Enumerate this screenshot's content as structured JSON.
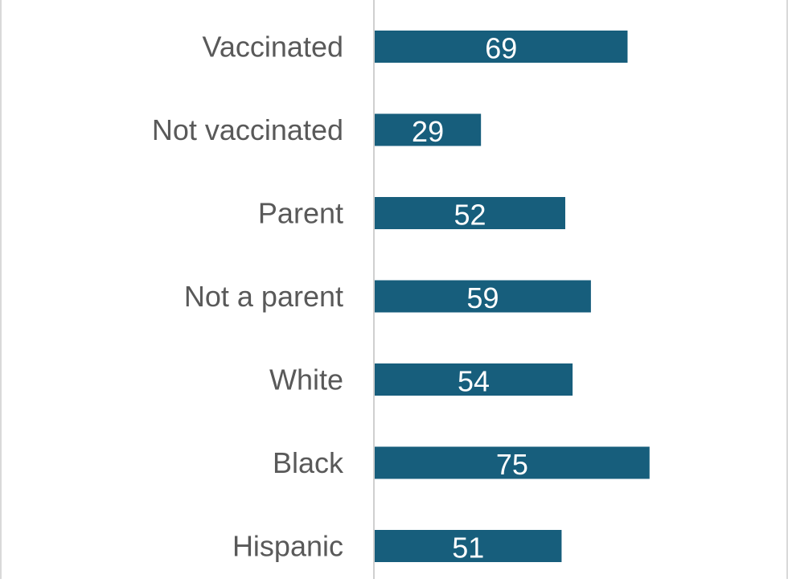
{
  "chart_data": {
    "type": "bar",
    "orientation": "horizontal",
    "categories": [
      "Vaccinated",
      "Not vaccinated",
      "Parent",
      "Not a parent",
      "White",
      "Black",
      "Hispanic"
    ],
    "values": [
      69,
      29,
      52,
      59,
      54,
      75,
      51
    ],
    "title": "",
    "xlabel": "",
    "ylabel": "",
    "xlim": [
      0,
      113
    ],
    "grid": false,
    "legend": "none",
    "data_labels": "inside-center",
    "colors": {
      "bar": "#175e7c",
      "bar_label": "#ffffff",
      "category_label": "#595959",
      "axis_line": "#bfbfbf",
      "frame": "#d9d9d9"
    }
  }
}
